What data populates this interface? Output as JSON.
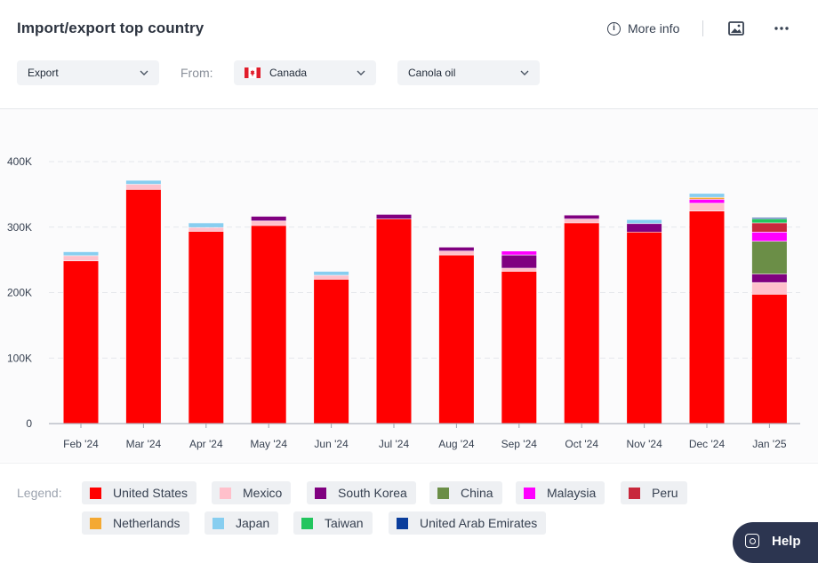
{
  "header": {
    "title": "Import/export top country",
    "more_info_label": "More info",
    "icons": {
      "info": "info-icon",
      "image": "image-icon",
      "more": "more-horizontal-icon"
    }
  },
  "filters": {
    "flow": {
      "value": "Export"
    },
    "from_label": "From:",
    "country": {
      "value": "Canada",
      "flag": "canada-flag-icon"
    },
    "product": {
      "value": "Canola oil"
    }
  },
  "legend": {
    "label": "Legend:",
    "items": [
      {
        "name": "United States",
        "color": "#ff0000"
      },
      {
        "name": "Mexico",
        "color": "#ffc0cb"
      },
      {
        "name": "South Korea",
        "color": "#800080"
      },
      {
        "name": "China",
        "color": "#6b8e47"
      },
      {
        "name": "Malaysia",
        "color": "#ff00ff"
      },
      {
        "name": "Peru",
        "color": "#c8283c"
      },
      {
        "name": "Netherlands",
        "color": "#f4a933"
      },
      {
        "name": "Japan",
        "color": "#87cef0"
      },
      {
        "name": "Taiwan",
        "color": "#22c55e"
      },
      {
        "name": "United Arab Emirates",
        "color": "#0a3d9c"
      }
    ]
  },
  "help": {
    "label": "Help"
  },
  "chart_data": {
    "type": "bar",
    "stacked": true,
    "categories": [
      "Feb '24",
      "Mar '24",
      "Apr '24",
      "May '24",
      "Jun '24",
      "Jul '24",
      "Aug '24",
      "Sep '24",
      "Oct '24",
      "Nov '24",
      "Dec '24",
      "Jan '25"
    ],
    "y_ticks": [
      "0",
      "100K",
      "200K",
      "300K",
      "400K"
    ],
    "ylim": [
      0,
      400000
    ],
    "grid": true,
    "series": [
      {
        "name": "United States",
        "color": "#ff0000",
        "values": [
          248000,
          357000,
          293000,
          302000,
          220000,
          312000,
          257000,
          232000,
          306000,
          292000,
          324000,
          197000
        ]
      },
      {
        "name": "Mexico",
        "color": "#ffc0cb",
        "values": [
          8000,
          8000,
          6000,
          7000,
          6000,
          0,
          6000,
          5000,
          6000,
          0,
          12000,
          18000
        ]
      },
      {
        "name": "South Korea",
        "color": "#800080",
        "values": [
          0,
          0,
          0,
          7000,
          0,
          7000,
          6000,
          20000,
          6000,
          13000,
          0,
          13000
        ]
      },
      {
        "name": "China",
        "color": "#6b8e47",
        "values": [
          0,
          0,
          0,
          0,
          0,
          0,
          0,
          0,
          0,
          0,
          0,
          50000
        ]
      },
      {
        "name": "Malaysia",
        "color": "#ff00ff",
        "values": [
          0,
          0,
          0,
          0,
          0,
          0,
          0,
          6000,
          0,
          0,
          6000,
          14000
        ]
      },
      {
        "name": "Peru",
        "color": "#c8283c",
        "values": [
          0,
          0,
          0,
          0,
          0,
          0,
          0,
          0,
          0,
          0,
          0,
          14000
        ]
      },
      {
        "name": "Netherlands",
        "color": "#f4a933",
        "values": [
          0,
          0,
          0,
          0,
          0,
          0,
          0,
          0,
          0,
          0,
          3000,
          0
        ]
      },
      {
        "name": "Japan",
        "color": "#87cef0",
        "values": [
          6000,
          6000,
          7000,
          0,
          6000,
          0,
          0,
          0,
          0,
          6000,
          6000,
          0
        ]
      },
      {
        "name": "Taiwan",
        "color": "#22c55e",
        "values": [
          0,
          0,
          0,
          0,
          0,
          0,
          0,
          0,
          0,
          0,
          0,
          6000
        ]
      },
      {
        "name": "United Arab Emirates",
        "color": "#0a3d9c",
        "values": [
          0,
          0,
          0,
          0,
          0,
          0,
          0,
          0,
          0,
          0,
          0,
          2000
        ]
      }
    ]
  }
}
